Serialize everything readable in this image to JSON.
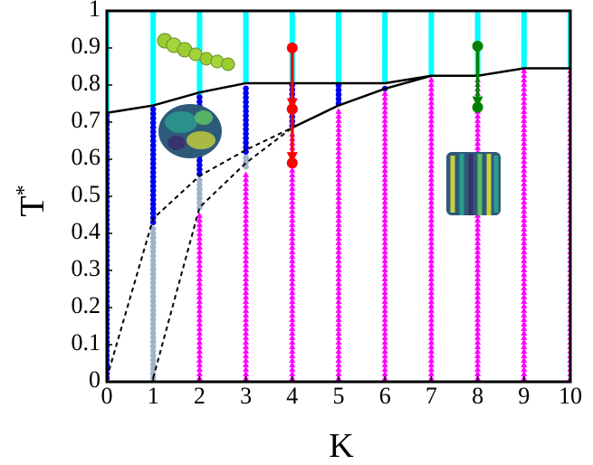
{
  "chart_data": {
    "type": "phase-diagram",
    "xlabel": "K",
    "ylabel": "T",
    "ylabel_superscript": "*",
    "xlim": [
      0,
      10
    ],
    "ylim": [
      0,
      1
    ],
    "xticks": [
      0,
      1,
      2,
      3,
      4,
      5,
      6,
      7,
      8,
      9,
      10
    ],
    "yticks": [
      0,
      0.1,
      0.2,
      0.3,
      0.4,
      0.5,
      0.6,
      0.7,
      0.8,
      0.9,
      1
    ],
    "series": [
      {
        "color": "#00ffff",
        "marker": "square",
        "x": [
          0,
          1,
          2,
          3,
          4,
          5,
          6,
          7,
          8,
          9,
          10
        ],
        "low": [
          0.73,
          0.75,
          0.78,
          0.81,
          0.81,
          0.81,
          0.81,
          0.83,
          0.83,
          0.85,
          0.85
        ],
        "high": [
          1,
          1,
          1,
          1,
          1,
          1,
          1,
          1,
          1,
          1,
          1
        ]
      },
      {
        "color": "#0000ee",
        "marker": "circle",
        "x": [
          0,
          1,
          2,
          3,
          4,
          5,
          6
        ],
        "low": [
          0.01,
          0.43,
          0.56,
          0.62,
          0.69,
          0.75,
          0.79
        ],
        "high": [
          0.72,
          0.74,
          0.77,
          0.8,
          0.8,
          0.8,
          0.8
        ]
      },
      {
        "color": "#9fb3c8",
        "marker": "circle",
        "x": [
          1,
          2,
          3
        ],
        "low": [
          0.01,
          0.47,
          0.58
        ],
        "high": [
          0.42,
          0.55,
          0.61
        ]
      },
      {
        "color": "#ff00ff",
        "marker": "triangle",
        "x": [
          2,
          3,
          4,
          5,
          6,
          7,
          8,
          9,
          10
        ],
        "low": [
          0.01,
          0.01,
          0.01,
          0.01,
          0.01,
          0.01,
          0.01,
          0.01,
          0.01
        ],
        "high": [
          0.46,
          0.57,
          0.68,
          0.74,
          0.78,
          0.82,
          0.82,
          0.84,
          0.84
        ]
      }
    ],
    "lines": [
      {
        "style": "solid",
        "x": [
          0,
          1,
          2,
          3,
          4,
          5,
          6,
          7,
          8,
          9,
          10
        ],
        "values": [
          0.725,
          0.745,
          0.78,
          0.805,
          0.805,
          0.805,
          0.805,
          0.825,
          0.825,
          0.845,
          0.845
        ]
      },
      {
        "style": "solid",
        "x": [
          4,
          5,
          6,
          7
        ],
        "values": [
          0.685,
          0.745,
          0.79,
          0.825
        ]
      },
      {
        "style": "dashed",
        "x": [
          0,
          1,
          2,
          3,
          4
        ],
        "values": [
          0.01,
          0.44,
          0.555,
          0.625,
          0.685
        ]
      },
      {
        "style": "dashed",
        "x": [
          1,
          2,
          3,
          4
        ],
        "values": [
          0.01,
          0.47,
          0.59,
          0.685
        ]
      }
    ],
    "arrows": [
      {
        "color": "#ff0000",
        "x": 4,
        "from": 0.9,
        "to": 0.735
      },
      {
        "color": "#ff0000",
        "x": 4,
        "from": 0.735,
        "to": 0.59
      },
      {
        "color": "#008000",
        "x": 8,
        "from": 0.905,
        "to": 0.74
      }
    ]
  }
}
